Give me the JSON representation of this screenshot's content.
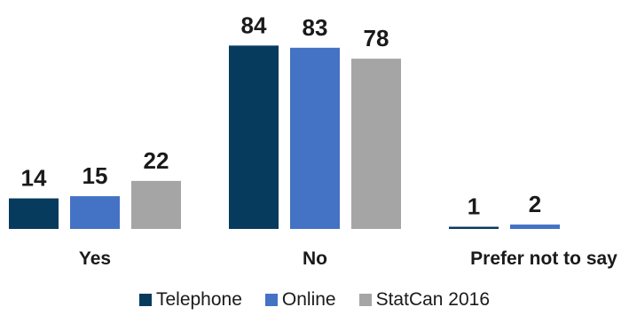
{
  "chart_data": {
    "type": "bar",
    "categories": [
      "Yes",
      "No",
      "Prefer not to say"
    ],
    "series": [
      {
        "name": "Telephone",
        "color": "#073b5e",
        "values": [
          14,
          84,
          1
        ]
      },
      {
        "name": "Online",
        "color": "#4472c4",
        "values": [
          15,
          83,
          2
        ]
      },
      {
        "name": "StatCan 2016",
        "color": "#a5a5a5",
        "values": [
          22,
          78,
          null
        ]
      }
    ],
    "title": "",
    "xlabel": "",
    "ylabel": "",
    "ylim": [
      0,
      100
    ],
    "grid": false,
    "legend_position": "bottom"
  }
}
